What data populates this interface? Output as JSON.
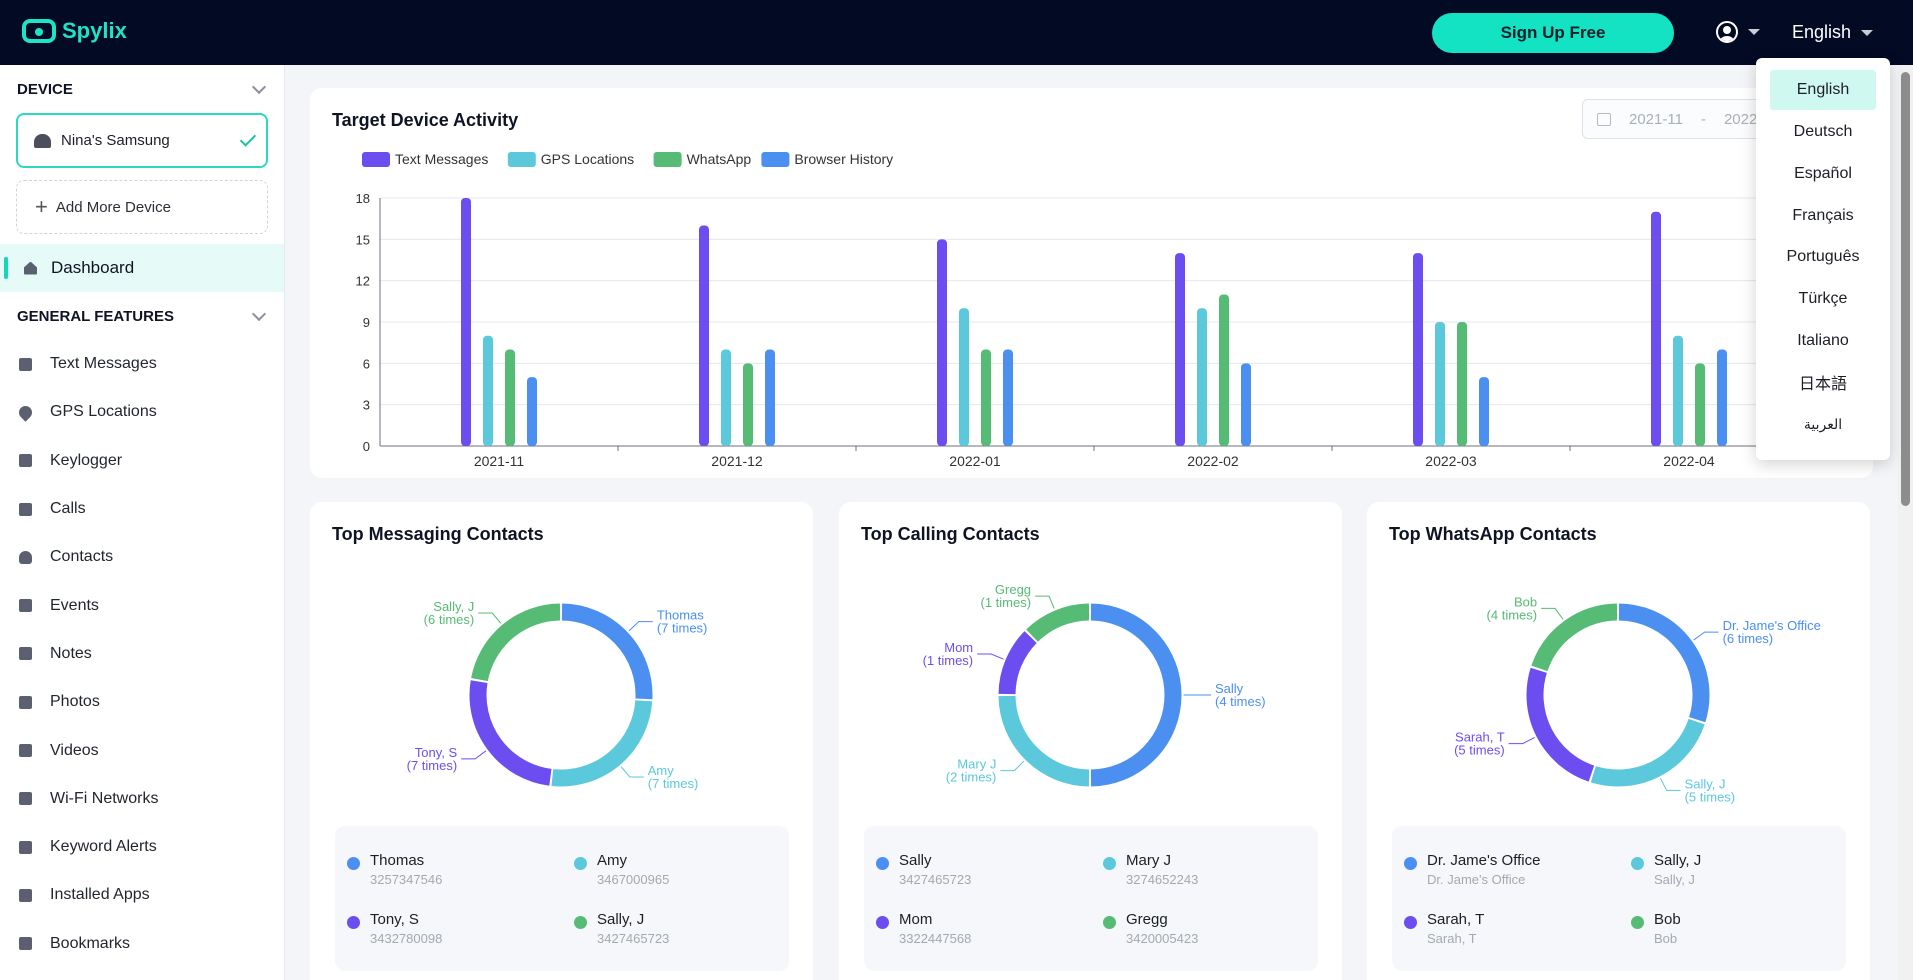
{
  "header": {
    "brand": "Spylix",
    "signup_label": "Sign Up Free",
    "language": "English"
  },
  "sidebar": {
    "device_section": "DEVICE",
    "device_name": "Nina's Samsung",
    "add_device": "Add More Device",
    "dashboard": "Dashboard",
    "features_section": "GENERAL FEATURES",
    "items": [
      {
        "label": "Text Messages",
        "icon": "message-icon"
      },
      {
        "label": "GPS Locations",
        "icon": "location-pin-icon"
      },
      {
        "label": "Keylogger",
        "icon": "keyboard-icon"
      },
      {
        "label": "Calls",
        "icon": "phone-icon"
      },
      {
        "label": "Contacts",
        "icon": "person-icon"
      },
      {
        "label": "Events",
        "icon": "calendar-icon"
      },
      {
        "label": "Notes",
        "icon": "pen-icon"
      },
      {
        "label": "Photos",
        "icon": "image-icon"
      },
      {
        "label": "Videos",
        "icon": "video-icon"
      },
      {
        "label": "Wi-Fi Networks",
        "icon": "wifi-icon"
      },
      {
        "label": "Keyword Alerts",
        "icon": "shield-icon"
      },
      {
        "label": "Installed Apps",
        "icon": "grid-icon"
      },
      {
        "label": "Bookmarks",
        "icon": "bookmark-icon"
      }
    ]
  },
  "activity": {
    "title": "Target Device Activity",
    "date_from": "2021-11",
    "date_sep": "-",
    "date_to": "2022"
  },
  "chart_data": [
    {
      "type": "bar",
      "title": "Target Device Activity",
      "categories": [
        "2021-11",
        "2021-12",
        "2022-01",
        "2022-02",
        "2022-03",
        "2022-04"
      ],
      "series": [
        {
          "name": "Text Messages",
          "color": "#6c4ef0",
          "values": [
            18,
            16,
            15,
            14,
            14,
            17
          ]
        },
        {
          "name": "GPS Locations",
          "color": "#5cc8dc",
          "values": [
            8,
            7,
            10,
            10,
            9,
            8
          ]
        },
        {
          "name": "WhatsApp",
          "color": "#56bb74",
          "values": [
            7,
            6,
            7,
            11,
            9,
            6
          ]
        },
        {
          "name": "Browser History",
          "color": "#4b8ff0",
          "values": [
            5,
            7,
            7,
            6,
            5,
            7
          ]
        }
      ],
      "yticks": [
        0,
        3,
        6,
        9,
        12,
        15,
        18
      ],
      "ylim": [
        0,
        18
      ],
      "grid": true,
      "legend": "top-left"
    },
    {
      "type": "pie",
      "title": "Top Messaging Contacts",
      "slices": [
        {
          "label": "Thomas",
          "sub": "(7 times)",
          "value": 7,
          "color": "#4b8ff0"
        },
        {
          "label": "Amy",
          "sub": "(7 times)",
          "value": 7,
          "color": "#5cc8dc"
        },
        {
          "label": "Tony, S",
          "sub": "(7 times)",
          "value": 7,
          "color": "#6c4ef0"
        },
        {
          "label": "Sally, J",
          "sub": "(6 times)",
          "value": 6,
          "color": "#56bb74"
        }
      ]
    },
    {
      "type": "pie",
      "title": "Top Calling Contacts",
      "slices": [
        {
          "label": "Sally",
          "sub": "(4 times)",
          "value": 4,
          "color": "#4b8ff0"
        },
        {
          "label": "Mary J",
          "sub": "(2 times)",
          "value": 2,
          "color": "#5cc8dc"
        },
        {
          "label": "Mom",
          "sub": "(1 times)",
          "value": 1,
          "color": "#6c4ef0"
        },
        {
          "label": "Gregg",
          "sub": "(1 times)",
          "value": 1,
          "color": "#56bb74"
        }
      ]
    },
    {
      "type": "pie",
      "title": "Top WhatsApp Contacts",
      "slices": [
        {
          "label": "Dr. Jame's Office",
          "sub": "(6 times)",
          "value": 6,
          "color": "#4b8ff0"
        },
        {
          "label": "Sally, J",
          "sub": "(5 times)",
          "value": 5,
          "color": "#5cc8dc"
        },
        {
          "label": "Sarah, T",
          "sub": "(5 times)",
          "value": 5,
          "color": "#6c4ef0"
        },
        {
          "label": "Bob",
          "sub": "(4 times)",
          "value": 4,
          "color": "#56bb74"
        }
      ]
    }
  ],
  "contacts": {
    "messaging": [
      {
        "name": "Thomas",
        "detail": "3257347546"
      },
      {
        "name": "Amy",
        "detail": "3467000965"
      },
      {
        "name": "Tony, S",
        "detail": "3432780098"
      },
      {
        "name": "Sally, J",
        "detail": "3427465723"
      }
    ],
    "calling": [
      {
        "name": "Sally",
        "detail": "3427465723"
      },
      {
        "name": "Mary J",
        "detail": "3274652243"
      },
      {
        "name": "Mom",
        "detail": "3322447568"
      },
      {
        "name": "Gregg",
        "detail": "3420005423"
      }
    ],
    "whatsapp": [
      {
        "name": "Dr. Jame's Office",
        "detail": "Dr. Jame's Office"
      },
      {
        "name": "Sally, J",
        "detail": "Sally, J"
      },
      {
        "name": "Sarah, T",
        "detail": "Sarah, T"
      },
      {
        "name": "Bob",
        "detail": "Bob"
      }
    ]
  },
  "colors": {
    "accent": "#14e3c3",
    "header_bg": "#020a24",
    "c1": "#4b8ff0",
    "c2": "#5cc8dc",
    "c3": "#6c4ef0",
    "c4": "#56bb74"
  },
  "language_menu": {
    "selected": "English",
    "options": [
      "English",
      "Deutsch",
      "Español",
      "Français",
      "Português",
      "Türkçe",
      "Italiano",
      "日本語",
      "العربية"
    ]
  }
}
